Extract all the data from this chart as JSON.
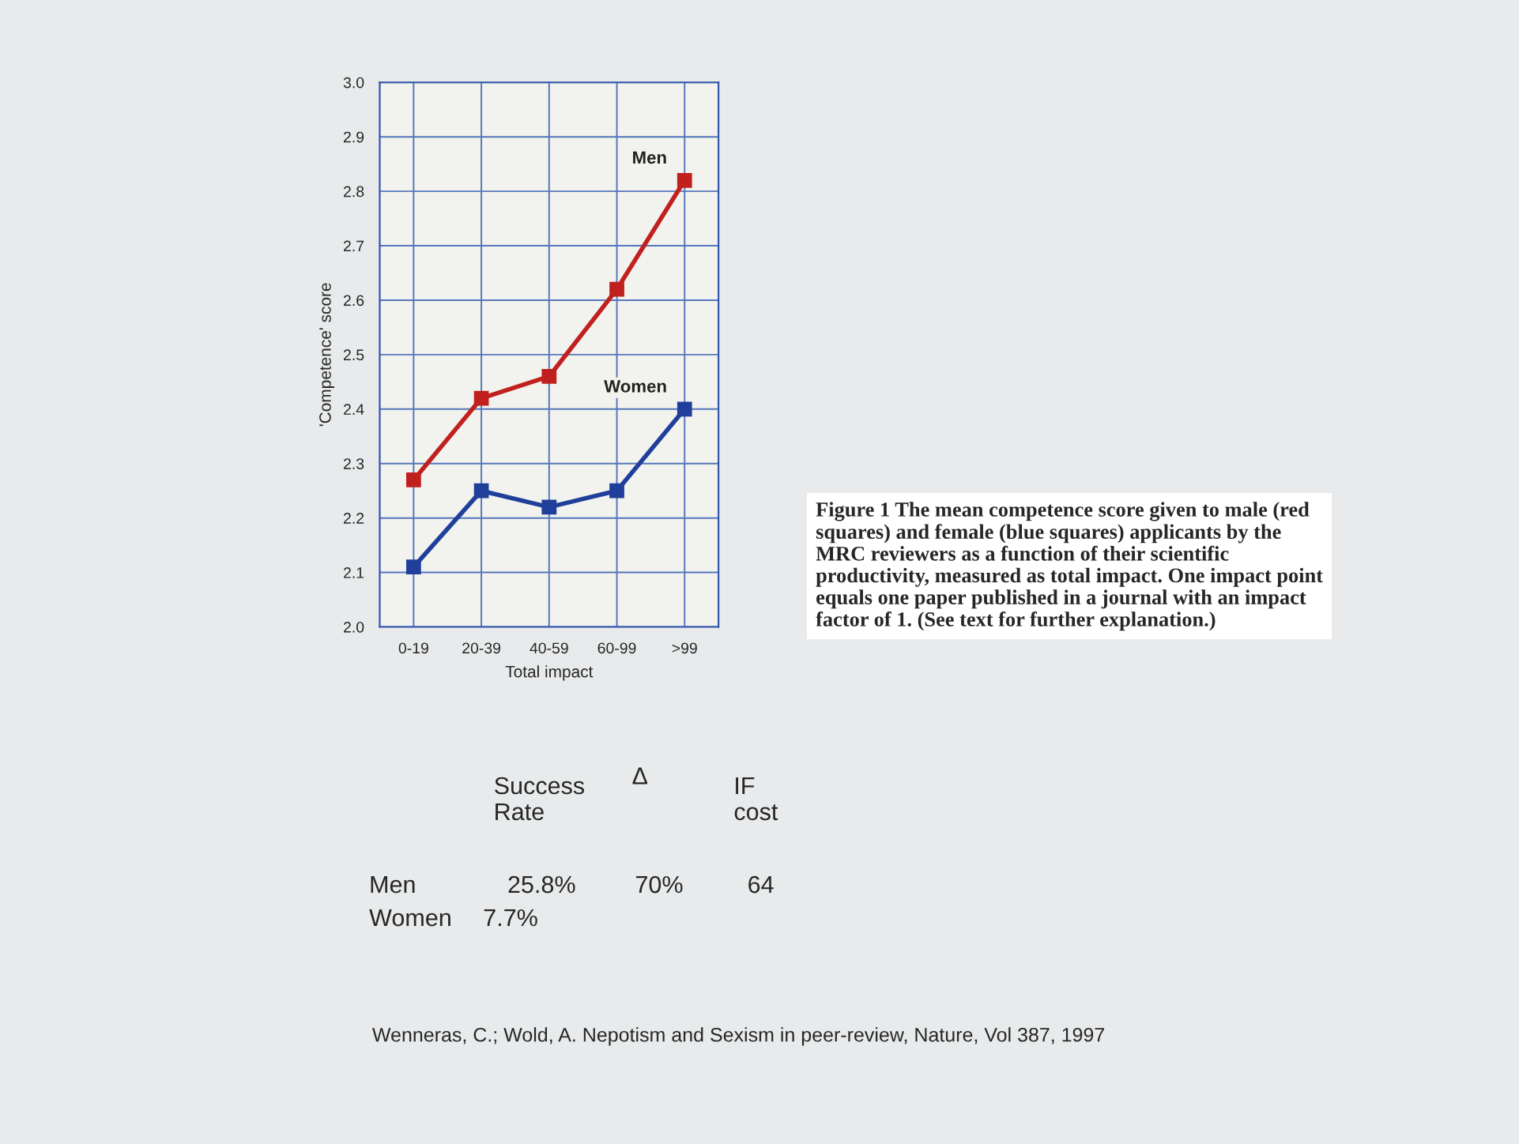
{
  "chart_data": {
    "type": "line",
    "ylabel": "'Competence' score",
    "xlabel": "Total impact",
    "categories": [
      "0-19",
      "20-39",
      "40-59",
      "60-99",
      ">99"
    ],
    "series": [
      {
        "name": "Men",
        "color": "#c0201e",
        "values": [
          2.27,
          2.42,
          2.46,
          2.62,
          2.82
        ]
      },
      {
        "name": "Women",
        "color": "#1f3f9a",
        "values": [
          2.11,
          2.25,
          2.22,
          2.25,
          2.4
        ]
      }
    ],
    "ylim": [
      2.0,
      3.0
    ],
    "yticks": [
      {
        "value": 2.0,
        "label": "2.0"
      },
      2.1,
      2.2,
      2.3,
      2.4,
      2.5,
      2.6,
      2.7,
      2.8,
      2.9,
      {
        "value": 3.0,
        "label": "3.0"
      }
    ],
    "grid": true,
    "legend": false,
    "marker": "square",
    "line_style": "solid",
    "annotations": [
      "Figure 1 The mean competence score given to male (red squares) and female (blue squares) applicants by the MRC reviewers as a function of their scientific productivity, measured as total impact. One impact point equals one paper published in a journal with an impact factor of 1. (See text for further explanation.)",
      "Success\nRate",
      "Δ",
      "IF\ncost",
      "Men",
      "25.8%",
      "70%",
      "64",
      "Women",
      "7.7%",
      "Wenneras, C.; Wold, A. Nepotism and Sexism in peer-review, Nature, Vol 387, 1997"
    ]
  }
}
